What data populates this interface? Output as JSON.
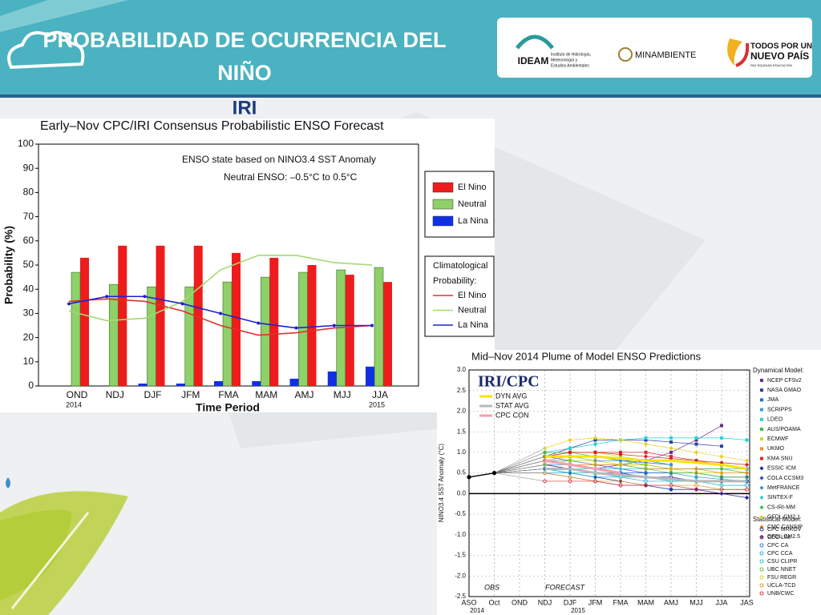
{
  "header": {
    "title": [
      "PROBABILIDAD DE OCURRENCIA DEL",
      "NIÑO"
    ],
    "subtitle": "IRI"
  },
  "logos": {
    "ideam": "IDEAM",
    "ideam_text": [
      "Instituto de Hidrología,",
      "Meteorología y",
      "Estudios Ambientales"
    ],
    "ministry": "MINAMBIENTE",
    "gov": [
      "TODOS POR UN",
      "NUEVO PAÍS"
    ],
    "gov_motto": "PAZ  EQUIDAD  EDUCACIÓN"
  },
  "chart_data": [
    {
      "type": "bar",
      "title": "Early–Nov CPC/IRI Consensus Probabilistic ENSO Forecast",
      "y_label": "Probability (%)",
      "x_label": "Time Period",
      "annotations": [
        "ENSO state based on NINO3.4 SST Anomaly",
        "Neutral ENSO: –0.5°C to 0.5°C"
      ],
      "categories": [
        "OND",
        "NDJ",
        "DJF",
        "JFM",
        "FMA",
        "MAM",
        "AMJ",
        "MJJ",
        "JJA"
      ],
      "year_labels": [
        "2014",
        null,
        null,
        null,
        null,
        null,
        null,
        null,
        "2015"
      ],
      "ylim": [
        0,
        100
      ],
      "yticks": [
        0,
        10,
        20,
        30,
        40,
        50,
        60,
        70,
        80,
        90,
        100
      ],
      "grid": false,
      "series": [
        {
          "name": "El Nino",
          "color": "#ee1c1c",
          "values": [
            53,
            58,
            58,
            58,
            55,
            53,
            50,
            46,
            43
          ]
        },
        {
          "name": "Neutral",
          "color": "#8fd068",
          "values": [
            47,
            42,
            41,
            41,
            43,
            45,
            47,
            48,
            49
          ]
        },
        {
          "name": "La Nina",
          "color": "#1030e0",
          "values": [
            0,
            0,
            1,
            1,
            2,
            2,
            3,
            6,
            8
          ]
        }
      ],
      "climatology": {
        "title": [
          "Climatological",
          "Probability:"
        ],
        "series": [
          {
            "name": "El Nino",
            "color": "#e03030",
            "values": [
              35,
              36,
              35,
              31,
              25,
              21,
              22,
              24,
              25
            ]
          },
          {
            "name": "Neutral",
            "color": "#a6d86e",
            "values": [
              31,
              27,
              28,
              35,
              48,
              54,
              54,
              51,
              50
            ]
          },
          {
            "name": "La Nina",
            "color": "#2020d0",
            "values": [
              34,
              37,
              37,
              34,
              30,
              26,
              24,
              25,
              25
            ]
          }
        ]
      }
    },
    {
      "type": "line",
      "title": "Mid–Nov 2014 Plume of Model ENSO Predictions",
      "y_label": "NINO3.4 SST Anomaly (°C)",
      "logo": "IRI/CPC",
      "annotations": [
        "OBS",
        "FORECAST"
      ],
      "categories": [
        "ASO",
        "Oct",
        "OND",
        "NDJ",
        "DJF",
        "JFM",
        "FMA",
        "MAM",
        "AMJ",
        "MJJ",
        "JJA",
        "JAS"
      ],
      "year_labels": [
        "2014",
        null,
        null,
        null,
        "2015",
        null,
        null,
        null,
        null,
        null,
        null,
        null
      ],
      "ylim": [
        -2.5,
        3.0
      ],
      "yticks": [
        {
          "value": 3,
          "label": "3.0"
        },
        2.5,
        {
          "value": 2,
          "label": "2.0"
        },
        1.5,
        {
          "value": 1,
          "label": "1.0"
        },
        0.5,
        {
          "value": 0,
          "label": "0.0"
        },
        -0.5,
        {
          "value": -1,
          "label": "-1.0"
        },
        -1.5,
        {
          "value": -2,
          "label": "-2.0"
        },
        -2.5
      ],
      "grid": true,
      "observed": {
        "color": "#000000",
        "values": [
          0.4,
          0.5,
          null,
          null,
          null,
          null,
          null,
          null,
          null,
          null,
          null,
          null
        ]
      },
      "groups": [
        "Dynamical Model:",
        "Statistical Model:"
      ],
      "averages": [
        {
          "name": "DYN AVG",
          "color": "#f5e400",
          "values": [
            null,
            null,
            null,
            0.9,
            0.9,
            0.9,
            0.85,
            0.8,
            0.8,
            0.75,
            0.7,
            0.6
          ]
        },
        {
          "name": "STAT AVG",
          "color": "#b8b8b8",
          "values": [
            null,
            null,
            null,
            0.6,
            0.6,
            0.5,
            0.45,
            0.4,
            0.35,
            0.3,
            0.3,
            0.3
          ]
        },
        {
          "name": "CPC CON",
          "color": "#f2a0b0",
          "values": [
            null,
            null,
            null,
            0.8,
            0.7,
            0.6,
            0.5,
            null,
            null,
            null,
            null,
            null
          ]
        }
      ],
      "series": [
        {
          "name": "NCEP CFSv2",
          "group": 0,
          "marker": "square",
          "color": "#6a2c91",
          "values": [
            null,
            null,
            null,
            0.8,
            0.7,
            0.6,
            0.7,
            0.8,
            1.0,
            1.3,
            1.65,
            null
          ]
        },
        {
          "name": "NASA GMAO",
          "group": 0,
          "marker": "square",
          "color": "#2b3ea8",
          "values": [
            null,
            null,
            null,
            0.9,
            1.1,
            1.3,
            1.3,
            1.3,
            1.25,
            1.2,
            1.15,
            null
          ]
        },
        {
          "name": "JMA",
          "group": 0,
          "marker": "square",
          "color": "#1e6fd0",
          "values": [
            null,
            null,
            null,
            0.8,
            0.8,
            0.8,
            0.8,
            0.75,
            0.7,
            null,
            null,
            null
          ]
        },
        {
          "name": "SCRIPPS",
          "group": 0,
          "marker": "square",
          "color": "#2ea3e0",
          "values": [
            null,
            null,
            null,
            0.7,
            0.7,
            0.6,
            0.5,
            0.5,
            0.5,
            0.4,
            0.35,
            0.3
          ]
        },
        {
          "name": "LDEO",
          "group": 0,
          "marker": "square",
          "color": "#22d4d8",
          "values": [
            null,
            null,
            null,
            1.0,
            1.1,
            1.2,
            1.3,
            1.35,
            1.35,
            1.35,
            1.35,
            1.3
          ]
        },
        {
          "name": "AUS/POAMA",
          "group": 0,
          "marker": "square",
          "color": "#38c048",
          "values": [
            null,
            null,
            null,
            1.0,
            1.0,
            0.9,
            0.8,
            0.7,
            0.6,
            null,
            null,
            null
          ]
        },
        {
          "name": "ECMWF",
          "group": 0,
          "marker": "square",
          "color": "#c4dc30",
          "values": [
            null,
            null,
            null,
            0.9,
            1.0,
            1.0,
            0.9,
            0.8,
            0.7,
            null,
            null,
            null
          ]
        },
        {
          "name": "UKMO",
          "group": 0,
          "marker": "square",
          "color": "#f09020",
          "values": [
            null,
            null,
            null,
            0.8,
            0.9,
            0.9,
            null,
            null,
            null,
            null,
            null,
            null
          ]
        },
        {
          "name": "KMA SNU",
          "group": 0,
          "marker": "square",
          "color": "#e02828",
          "values": [
            null,
            null,
            null,
            0.9,
            1.0,
            1.0,
            1.0,
            1.0,
            0.9,
            0.8,
            0.7,
            0.6
          ]
        },
        {
          "name": "ESSIC ICM",
          "group": 0,
          "marker": "diamond",
          "color": "#1a2a9a",
          "values": [
            null,
            null,
            null,
            0.6,
            0.5,
            0.4,
            0.3,
            0.2,
            0.1,
            0.1,
            0.0,
            -0.1
          ]
        },
        {
          "name": "COLA CCSM3",
          "group": 0,
          "marker": "diamond",
          "color": "#3050d8",
          "values": [
            null,
            null,
            null,
            0.9,
            0.8,
            0.7,
            0.6,
            0.5,
            0.5,
            0.5,
            0.4,
            0.4
          ]
        },
        {
          "name": "MetFRANCE",
          "group": 0,
          "marker": "diamond",
          "color": "#3090e0",
          "values": [
            null,
            null,
            null,
            0.9,
            0.9,
            0.9,
            0.8,
            0.8,
            0.7,
            null,
            null,
            null
          ]
        },
        {
          "name": "SINTEX-F",
          "group": 0,
          "marker": "diamond",
          "color": "#30c8d8",
          "values": [
            null,
            null,
            null,
            0.7,
            0.6,
            0.6,
            0.6,
            0.6,
            0.6,
            0.6,
            0.6,
            0.6
          ]
        },
        {
          "name": "CS-IRI-MM",
          "group": 0,
          "marker": "diamond",
          "color": "#40c050",
          "values": [
            null,
            null,
            null,
            0.8,
            0.8,
            0.7,
            0.7,
            0.7,
            0.6,
            0.6,
            0.6,
            0.5
          ]
        },
        {
          "name": "GFDL CM2.1",
          "group": 0,
          "marker": "diamond",
          "color": "#e8d020",
          "values": [
            null,
            null,
            null,
            1.1,
            1.3,
            1.35,
            1.3,
            1.2,
            1.1,
            1.0,
            0.9,
            0.8
          ]
        },
        {
          "name": "CMC CANSIP",
          "group": 0,
          "marker": "diamond",
          "color": "#f08818",
          "values": [
            null,
            null,
            null,
            0.8,
            0.7,
            0.7,
            0.7,
            0.6,
            0.6,
            0.6,
            0.5,
            0.5
          ]
        },
        {
          "name": "GFDL CM2.5",
          "group": 0,
          "marker": "diamond",
          "color": "#d82020",
          "values": [
            null,
            null,
            null,
            0.9,
            1.0,
            1.0,
            0.95,
            0.9,
            0.85,
            0.8,
            0.75,
            0.7
          ]
        },
        {
          "name": "CPC MRKOV",
          "group": 1,
          "marker": "circle",
          "color": "#3a2a9a",
          "values": [
            null,
            null,
            null,
            0.7,
            0.6,
            0.5,
            0.5,
            0.4,
            0.4,
            0.3,
            0.3,
            0.3
          ]
        },
        {
          "name": "CDC LIM",
          "group": 1,
          "marker": "circle",
          "color": "#3050c8",
          "values": [
            null,
            null,
            null,
            0.5,
            0.4,
            0.3,
            0.2,
            0.2,
            0.1,
            0.1,
            null,
            null
          ]
        },
        {
          "name": "CPC CA",
          "group": 1,
          "marker": "circle",
          "color": "#2878d8",
          "values": [
            null,
            null,
            null,
            0.6,
            0.6,
            0.5,
            0.5,
            0.5,
            0.5,
            0.5,
            0.4,
            0.4
          ]
        },
        {
          "name": "CPC CCA",
          "group": 1,
          "marker": "circle",
          "color": "#28a8e0",
          "values": [
            null,
            null,
            null,
            0.5,
            0.5,
            0.4,
            0.4,
            0.3,
            0.3,
            0.3,
            0.2,
            0.2
          ]
        },
        {
          "name": "CSU CLIPR",
          "group": 1,
          "marker": "circle",
          "color": "#28c8c8",
          "values": [
            null,
            null,
            null,
            0.6,
            0.5,
            0.5,
            0.4,
            0.4,
            0.3,
            0.3,
            0.2,
            0.2
          ]
        },
        {
          "name": "UBC NNET",
          "group": 1,
          "marker": "circle",
          "color": "#60c840",
          "values": [
            null,
            null,
            null,
            0.9,
            0.9,
            0.8,
            0.7,
            0.6,
            0.5,
            0.5,
            0.4,
            0.4
          ]
        },
        {
          "name": "FSU REGR",
          "group": 1,
          "marker": "circle",
          "color": "#d8d020",
          "values": [
            null,
            null,
            null,
            0.7,
            0.8,
            0.8,
            0.7,
            0.7,
            0.6,
            0.5,
            0.5,
            null
          ]
        },
        {
          "name": "UCLA-TCD",
          "group": 1,
          "marker": "circle",
          "color": "#f09028",
          "values": [
            null,
            null,
            null,
            0.5,
            0.4,
            0.3,
            0.3,
            0.2,
            0.2,
            0.2,
            0.1,
            0.1
          ]
        },
        {
          "name": "UNB/CWC",
          "group": 1,
          "marker": "circle",
          "color": "#e03030",
          "values": [
            null,
            null,
            null,
            0.3,
            0.3,
            0.3,
            0.2,
            0.2,
            0.2,
            0.1,
            0.1,
            0.1
          ]
        }
      ]
    }
  ]
}
